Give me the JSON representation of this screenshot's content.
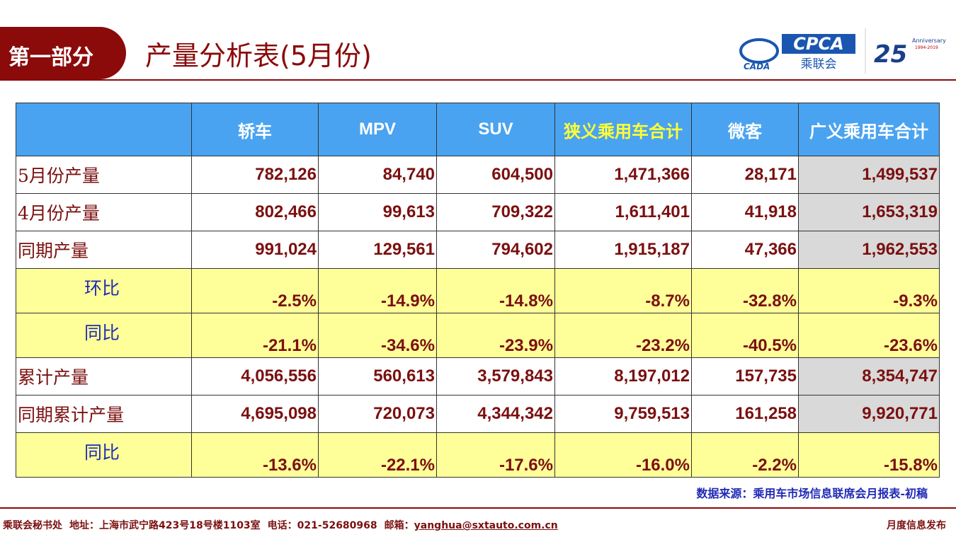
{
  "header": {
    "section": "第一部分",
    "title": "产量分析表(5月份)",
    "logo": {
      "cpca": "CPCA",
      "org": "乘联会",
      "cada": "CADA",
      "number": "25",
      "anniversary": "Anniversary",
      "years": "1994-2019"
    }
  },
  "table": {
    "columns": [
      "轿车",
      "MPV",
      "SUV",
      "狭义乘用车合计",
      "微客",
      "广义乘用车合计"
    ],
    "rows": [
      {
        "label": "5月份产量",
        "cells": [
          "782,126",
          "84,740",
          "604,500",
          "1,471,366",
          "28,171",
          "1,499,537"
        ]
      },
      {
        "label": "4月份产量",
        "cells": [
          "802,466",
          "99,613",
          "709,322",
          "1,611,401",
          "41,918",
          "1,653,319"
        ]
      },
      {
        "label": "同期产量",
        "cells": [
          "991,024",
          "129,561",
          "794,602",
          "1,915,187",
          "47,366",
          "1,962,553"
        ]
      },
      {
        "label": "环比",
        "cells": [
          "-2.5%",
          "-14.9%",
          "-14.8%",
          "-8.7%",
          "-32.8%",
          "-9.3%"
        ]
      },
      {
        "label": "同比",
        "cells": [
          "-21.1%",
          "-34.6%",
          "-23.9%",
          "-23.2%",
          "-40.5%",
          "-23.6%"
        ]
      },
      {
        "label": "累计产量",
        "cells": [
          "4,056,556",
          "560,613",
          "3,579,843",
          "8,197,012",
          "157,735",
          "8,354,747"
        ]
      },
      {
        "label": "同期累计产量",
        "cells": [
          "4,695,098",
          "720,073",
          "4,344,342",
          "9,759,513",
          "161,258",
          "9,920,771"
        ]
      },
      {
        "label": "同比",
        "cells": [
          "-13.6%",
          "-22.1%",
          "-17.6%",
          "-16.0%",
          "-2.2%",
          "-15.8%"
        ]
      }
    ]
  },
  "source": "数据来源：乘用车市场信息联席会月报表-初稿",
  "footer": {
    "org": "乘联会秘书处",
    "address": "地址：上海市武宁路423号18号楼1103室",
    "phone": "电话：021-52680968",
    "email_label": "邮箱：",
    "email": "yanghua@sxtauto.com.cn",
    "right": "月度信息发布"
  }
}
